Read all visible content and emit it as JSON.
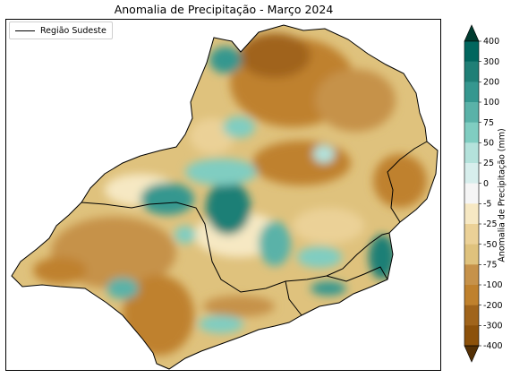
{
  "title": "Anomalia de Precipitação - Março 2024",
  "legend": {
    "label": "Região Sudeste"
  },
  "colorbar": {
    "label": "Anomalia de Precipitação (mm)",
    "ticks": [
      "400",
      "300",
      "200",
      "100",
      "75",
      "50",
      "25",
      "0",
      "-5",
      "-25",
      "-50",
      "-75",
      "-100",
      "-200",
      "-300",
      "-400"
    ],
    "colors": [
      "#003c30",
      "#01665e",
      "#1f7f76",
      "#35978f",
      "#5ab2a8",
      "#80cdc1",
      "#b4e2db",
      "#d7eeec",
      "#f5f5f5",
      "#f6e8c3",
      "#ebd197",
      "#dfc27d",
      "#c6924a",
      "#bf812d",
      "#a0641b",
      "#8c510a",
      "#543005"
    ]
  }
}
